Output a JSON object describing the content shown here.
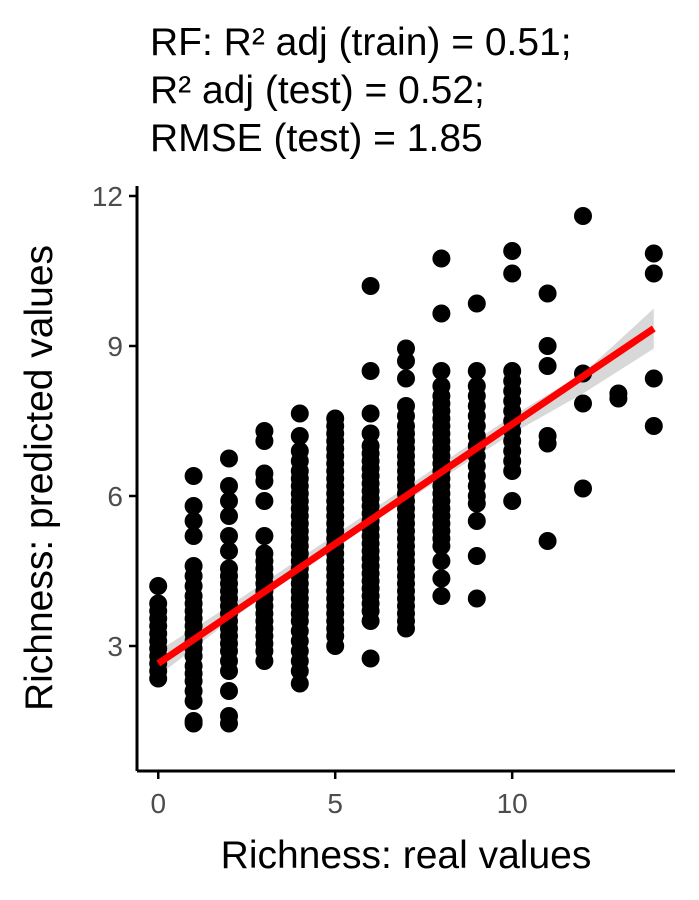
{
  "chart_data": {
    "type": "scatter",
    "title_lines": [
      "RF: R² adj (train) = 0.51;",
      "R² adj (test) = 0.52;",
      "RMSE (test) = 1.85"
    ],
    "xlabel": "Richness: real values",
    "ylabel": "Richness: predicted values",
    "xlim": [
      -0.6,
      14.6
    ],
    "ylim": [
      0.5,
      12.2
    ],
    "xticks": [
      0,
      5,
      10
    ],
    "yticks": [
      3,
      6,
      9,
      12
    ],
    "grid": false,
    "point_color": "#000000",
    "fit_color": "#ff0000",
    "band_color": "#bebebe",
    "fit_line": {
      "x": [
        0,
        14
      ],
      "y": [
        2.65,
        9.35
      ]
    },
    "confidence_band": {
      "x": [
        0,
        2,
        4,
        6,
        8,
        10,
        12,
        14
      ],
      "lower": [
        2.4,
        3.5,
        4.5,
        5.45,
        6.35,
        7.25,
        8.05,
        8.95
      ],
      "upper": [
        2.9,
        3.8,
        4.75,
        5.7,
        6.65,
        7.6,
        8.45,
        9.75
      ]
    },
    "points": [
      [
        0,
        2.35
      ],
      [
        0,
        2.5
      ],
      [
        0,
        2.65
      ],
      [
        0,
        2.8
      ],
      [
        0,
        2.95
      ],
      [
        0,
        3.1
      ],
      [
        0,
        3.25
      ],
      [
        0,
        3.4
      ],
      [
        0,
        3.55
      ],
      [
        0,
        3.7
      ],
      [
        0,
        3.85
      ],
      [
        0,
        4.2
      ],
      [
        1,
        1.45
      ],
      [
        1,
        1.5
      ],
      [
        1,
        1.9
      ],
      [
        1,
        2.1
      ],
      [
        1,
        2.3
      ],
      [
        1,
        2.45
      ],
      [
        1,
        2.6
      ],
      [
        1,
        2.8
      ],
      [
        1,
        2.95
      ],
      [
        1,
        3.1
      ],
      [
        1,
        3.25
      ],
      [
        1,
        3.4
      ],
      [
        1,
        3.55
      ],
      [
        1,
        3.7
      ],
      [
        1,
        3.85
      ],
      [
        1,
        4.0
      ],
      [
        1,
        4.2
      ],
      [
        1,
        4.4
      ],
      [
        1,
        4.6
      ],
      [
        1,
        5.2
      ],
      [
        1,
        5.5
      ],
      [
        1,
        5.8
      ],
      [
        1,
        6.4
      ],
      [
        2,
        1.45
      ],
      [
        2,
        1.6
      ],
      [
        2,
        2.1
      ],
      [
        2,
        2.5
      ],
      [
        2,
        2.7
      ],
      [
        2,
        2.9
      ],
      [
        2,
        3.05
      ],
      [
        2,
        3.2
      ],
      [
        2,
        3.35
      ],
      [
        2,
        3.5
      ],
      [
        2,
        3.65
      ],
      [
        2,
        3.8
      ],
      [
        2,
        3.95
      ],
      [
        2,
        4.1
      ],
      [
        2,
        4.25
      ],
      [
        2,
        4.4
      ],
      [
        2,
        4.55
      ],
      [
        2,
        4.9
      ],
      [
        2,
        5.2
      ],
      [
        2,
        5.6
      ],
      [
        2,
        5.9
      ],
      [
        2,
        6.2
      ],
      [
        2,
        6.75
      ],
      [
        3,
        2.7
      ],
      [
        3,
        2.9
      ],
      [
        3,
        3.05
      ],
      [
        3,
        3.2
      ],
      [
        3,
        3.35
      ],
      [
        3,
        3.5
      ],
      [
        3,
        3.65
      ],
      [
        3,
        3.8
      ],
      [
        3,
        3.95
      ],
      [
        3,
        4.1
      ],
      [
        3,
        4.25
      ],
      [
        3,
        4.4
      ],
      [
        3,
        4.55
      ],
      [
        3,
        4.7
      ],
      [
        3,
        4.85
      ],
      [
        3,
        5.2
      ],
      [
        3,
        5.9
      ],
      [
        3,
        6.3
      ],
      [
        3,
        6.45
      ],
      [
        3,
        7.1
      ],
      [
        3,
        7.3
      ],
      [
        4,
        2.25
      ],
      [
        4,
        2.5
      ],
      [
        4,
        2.7
      ],
      [
        4,
        2.9
      ],
      [
        4,
        3.1
      ],
      [
        4,
        3.3
      ],
      [
        4,
        3.5
      ],
      [
        4,
        3.65
      ],
      [
        4,
        3.8
      ],
      [
        4,
        3.95
      ],
      [
        4,
        4.1
      ],
      [
        4,
        4.25
      ],
      [
        4,
        4.4
      ],
      [
        4,
        4.55
      ],
      [
        4,
        4.7
      ],
      [
        4,
        4.85
      ],
      [
        4,
        5.0
      ],
      [
        4,
        5.15
      ],
      [
        4,
        5.3
      ],
      [
        4,
        5.45
      ],
      [
        4,
        5.6
      ],
      [
        4,
        5.75
      ],
      [
        4,
        5.9
      ],
      [
        4,
        6.05
      ],
      [
        4,
        6.2
      ],
      [
        4,
        6.35
      ],
      [
        4,
        6.5
      ],
      [
        4,
        6.7
      ],
      [
        4,
        6.9
      ],
      [
        4,
        7.2
      ],
      [
        4,
        7.65
      ],
      [
        5,
        3.0
      ],
      [
        5,
        3.2
      ],
      [
        5,
        3.35
      ],
      [
        5,
        3.5
      ],
      [
        5,
        3.65
      ],
      [
        5,
        3.8
      ],
      [
        5,
        3.95
      ],
      [
        5,
        4.1
      ],
      [
        5,
        4.25
      ],
      [
        5,
        4.4
      ],
      [
        5,
        4.55
      ],
      [
        5,
        4.7
      ],
      [
        5,
        4.85
      ],
      [
        5,
        5.0
      ],
      [
        5,
        5.15
      ],
      [
        5,
        5.3
      ],
      [
        5,
        5.45
      ],
      [
        5,
        5.6
      ],
      [
        5,
        5.75
      ],
      [
        5,
        5.9
      ],
      [
        5,
        6.05
      ],
      [
        5,
        6.2
      ],
      [
        5,
        6.35
      ],
      [
        5,
        6.5
      ],
      [
        5,
        6.65
      ],
      [
        5,
        6.8
      ],
      [
        5,
        6.95
      ],
      [
        5,
        7.1
      ],
      [
        5,
        7.25
      ],
      [
        5,
        7.4
      ],
      [
        5,
        7.55
      ],
      [
        6,
        2.75
      ],
      [
        6,
        3.5
      ],
      [
        6,
        3.7
      ],
      [
        6,
        3.85
      ],
      [
        6,
        4.0
      ],
      [
        6,
        4.15
      ],
      [
        6,
        4.3
      ],
      [
        6,
        4.45
      ],
      [
        6,
        4.6
      ],
      [
        6,
        4.75
      ],
      [
        6,
        4.9
      ],
      [
        6,
        5.05
      ],
      [
        6,
        5.2
      ],
      [
        6,
        5.35
      ],
      [
        6,
        5.5
      ],
      [
        6,
        5.65
      ],
      [
        6,
        5.8
      ],
      [
        6,
        5.95
      ],
      [
        6,
        6.1
      ],
      [
        6,
        6.25
      ],
      [
        6,
        6.4
      ],
      [
        6,
        6.55
      ],
      [
        6,
        6.7
      ],
      [
        6,
        6.85
      ],
      [
        6,
        7.0
      ],
      [
        6,
        7.25
      ],
      [
        6,
        7.65
      ],
      [
        6,
        8.5
      ],
      [
        6,
        10.2
      ],
      [
        7,
        3.35
      ],
      [
        7,
        3.5
      ],
      [
        7,
        3.65
      ],
      [
        7,
        3.8
      ],
      [
        7,
        3.95
      ],
      [
        7,
        4.1
      ],
      [
        7,
        4.25
      ],
      [
        7,
        4.4
      ],
      [
        7,
        4.55
      ],
      [
        7,
        4.7
      ],
      [
        7,
        4.85
      ],
      [
        7,
        5.0
      ],
      [
        7,
        5.15
      ],
      [
        7,
        5.3
      ],
      [
        7,
        5.45
      ],
      [
        7,
        5.6
      ],
      [
        7,
        5.75
      ],
      [
        7,
        5.9
      ],
      [
        7,
        6.05
      ],
      [
        7,
        6.2
      ],
      [
        7,
        6.35
      ],
      [
        7,
        6.5
      ],
      [
        7,
        6.65
      ],
      [
        7,
        6.8
      ],
      [
        7,
        6.95
      ],
      [
        7,
        7.1
      ],
      [
        7,
        7.25
      ],
      [
        7,
        7.4
      ],
      [
        7,
        7.6
      ],
      [
        7,
        7.8
      ],
      [
        7,
        8.35
      ],
      [
        7,
        8.7
      ],
      [
        7,
        8.95
      ],
      [
        8,
        4.0
      ],
      [
        8,
        4.35
      ],
      [
        8,
        4.7
      ],
      [
        8,
        5.0
      ],
      [
        8,
        5.15
      ],
      [
        8,
        5.3
      ],
      [
        8,
        5.45
      ],
      [
        8,
        5.6
      ],
      [
        8,
        5.75
      ],
      [
        8,
        5.9
      ],
      [
        8,
        6.05
      ],
      [
        8,
        6.2
      ],
      [
        8,
        6.35
      ],
      [
        8,
        6.5
      ],
      [
        8,
        6.65
      ],
      [
        8,
        6.8
      ],
      [
        8,
        6.95
      ],
      [
        8,
        7.1
      ],
      [
        8,
        7.25
      ],
      [
        8,
        7.4
      ],
      [
        8,
        7.55
      ],
      [
        8,
        7.7
      ],
      [
        8,
        7.85
      ],
      [
        8,
        8.0
      ],
      [
        8,
        8.2
      ],
      [
        8,
        8.5
      ],
      [
        8,
        9.65
      ],
      [
        8,
        10.75
      ],
      [
        9,
        3.95
      ],
      [
        9,
        4.8
      ],
      [
        9,
        5.5
      ],
      [
        9,
        5.85
      ],
      [
        9,
        6.0
      ],
      [
        9,
        6.2
      ],
      [
        9,
        6.4
      ],
      [
        9,
        6.6
      ],
      [
        9,
        6.8
      ],
      [
        9,
        7.0
      ],
      [
        9,
        7.2
      ],
      [
        9,
        7.4
      ],
      [
        9,
        7.6
      ],
      [
        9,
        7.8
      ],
      [
        9,
        8.0
      ],
      [
        9,
        8.2
      ],
      [
        9,
        8.5
      ],
      [
        9,
        9.85
      ],
      [
        10,
        5.9
      ],
      [
        10,
        6.5
      ],
      [
        10,
        6.7
      ],
      [
        10,
        6.9
      ],
      [
        10,
        7.1
      ],
      [
        10,
        7.3
      ],
      [
        10,
        7.5
      ],
      [
        10,
        7.7
      ],
      [
        10,
        7.9
      ],
      [
        10,
        8.1
      ],
      [
        10,
        8.3
      ],
      [
        10,
        8.5
      ],
      [
        10,
        10.45
      ],
      [
        10,
        10.9
      ],
      [
        11,
        5.1
      ],
      [
        11,
        7.05
      ],
      [
        11,
        7.2
      ],
      [
        11,
        8.6
      ],
      [
        11,
        9.0
      ],
      [
        11,
        10.05
      ],
      [
        12,
        6.15
      ],
      [
        12,
        7.85
      ],
      [
        12,
        8.45
      ],
      [
        12,
        11.6
      ],
      [
        13,
        7.95
      ],
      [
        13,
        8.05
      ],
      [
        14,
        7.4
      ],
      [
        14,
        8.35
      ],
      [
        14,
        10.45
      ],
      [
        14,
        10.85
      ]
    ]
  }
}
